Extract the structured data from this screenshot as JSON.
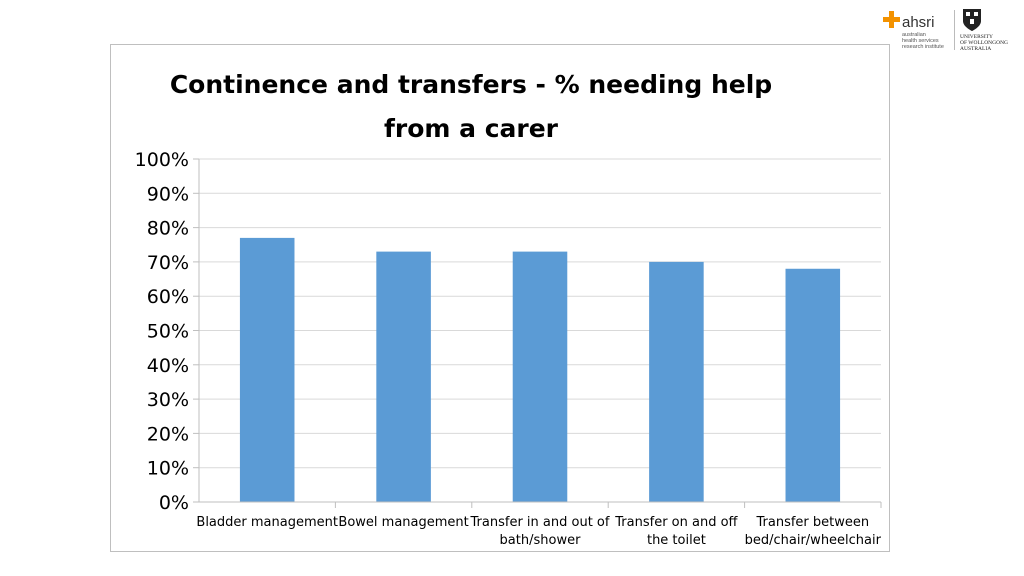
{
  "logos": {
    "ahsri_name": "ahsri",
    "ahsri_subtitle": "australian\nhealth services\nresearch institute",
    "uow_text": "UNIVERSITY\nOF WOLLONGONG\nAUSTRALIA",
    "ahsri_color": "#f39200"
  },
  "chart_data": {
    "type": "bar",
    "title": "Continence and transfers  - % needing help from a carer",
    "title_lines": [
      "Continence and transfers  - % needing help",
      "from a carer"
    ],
    "categories": [
      "Bladder management",
      "Bowel management",
      "Transfer in and out of bath/shower",
      "Transfer on and off the toilet",
      "Transfer between bed/chair/wheelchair"
    ],
    "category_lines": [
      [
        "Bladder management"
      ],
      [
        "Bowel management"
      ],
      [
        "Transfer in and out of",
        "bath/shower"
      ],
      [
        "Transfer on and off",
        "the toilet"
      ],
      [
        "Transfer between",
        "bed/chair/wheelchair"
      ]
    ],
    "values": [
      77,
      73,
      73,
      70,
      68
    ],
    "ylim": [
      0,
      100
    ],
    "yticks": [
      "0%",
      "10%",
      "20%",
      "30%",
      "40%",
      "50%",
      "60%",
      "70%",
      "80%",
      "90%",
      "100%"
    ],
    "xlabel": "",
    "ylabel": "",
    "grid": true,
    "legend": "none",
    "bar_color": "#5b9bd5",
    "grid_color": "#d9d9d9"
  }
}
